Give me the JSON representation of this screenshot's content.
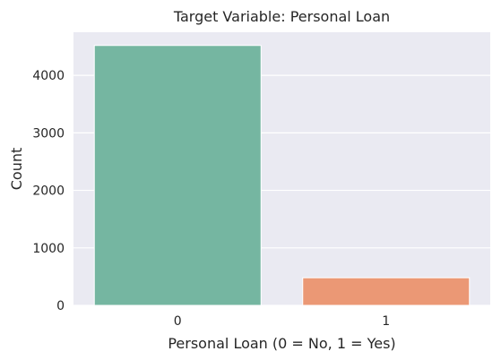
{
  "chart_data": {
    "type": "bar",
    "title": "Target Variable: Personal Loan",
    "xlabel": "Personal Loan (0 = No, 1 = Yes)",
    "ylabel": "Count",
    "categories": [
      "0",
      "1"
    ],
    "values": [
      4520,
      480
    ],
    "colors": [
      "#75b6a1",
      "#eb9875"
    ],
    "ylim": [
      0,
      4750
    ],
    "yticks": [
      0,
      1000,
      2000,
      3000,
      4000
    ],
    "grid": true,
    "style": {
      "plot_background": "#eaeaf2",
      "grid_color": "#ffffff",
      "text_color": "#262626"
    }
  }
}
